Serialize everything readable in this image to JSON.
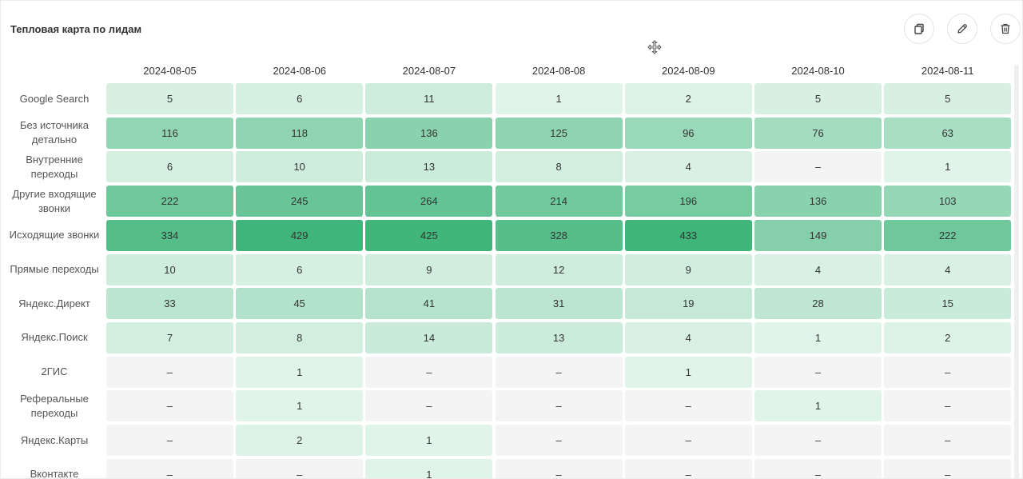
{
  "widget": {
    "title": "Тепловая карта по лидам"
  },
  "toolbar": {
    "icons": [
      "copy-icon",
      "edit-icon",
      "delete-icon",
      "move-icon"
    ]
  },
  "colors": {
    "empty": "#f4f4f4",
    "low": "#e9f7ef",
    "high": "#3fb57a"
  },
  "chart_data": {
    "type": "heatmap",
    "title": "Тепловая карта по лидам",
    "columns": [
      "2024-08-05",
      "2024-08-06",
      "2024-08-07",
      "2024-08-08",
      "2024-08-09",
      "2024-08-10",
      "2024-08-11"
    ],
    "rows": [
      {
        "label": "Google Search",
        "values": [
          5,
          6,
          11,
          1,
          2,
          5,
          5
        ]
      },
      {
        "label": "Без источника детально",
        "values": [
          116,
          118,
          136,
          125,
          96,
          76,
          63
        ]
      },
      {
        "label": "Внутренние переходы",
        "values": [
          6,
          10,
          13,
          8,
          4,
          null,
          1
        ]
      },
      {
        "label": "Другие входящие звонки",
        "values": [
          222,
          245,
          264,
          214,
          196,
          136,
          103
        ]
      },
      {
        "label": "Исходящие звонки",
        "values": [
          334,
          429,
          425,
          328,
          433,
          149,
          222
        ]
      },
      {
        "label": "Прямые переходы",
        "values": [
          10,
          6,
          9,
          12,
          9,
          4,
          4
        ]
      },
      {
        "label": "Яндекс.Директ",
        "values": [
          33,
          45,
          41,
          31,
          19,
          28,
          15
        ]
      },
      {
        "label": "Яндекс.Поиск",
        "values": [
          7,
          8,
          14,
          13,
          4,
          1,
          2
        ]
      },
      {
        "label": "2ГИС",
        "values": [
          null,
          1,
          null,
          null,
          1,
          null,
          null
        ]
      },
      {
        "label": "Реферальные переходы",
        "values": [
          null,
          1,
          null,
          null,
          null,
          1,
          null
        ]
      },
      {
        "label": "Яндекс.Карты",
        "values": [
          null,
          2,
          1,
          null,
          null,
          null,
          null
        ]
      },
      {
        "label": "Вконтакте",
        "values": [
          null,
          null,
          1,
          null,
          null,
          null,
          null
        ]
      }
    ],
    "empty_label": "–",
    "max_value": 433
  }
}
